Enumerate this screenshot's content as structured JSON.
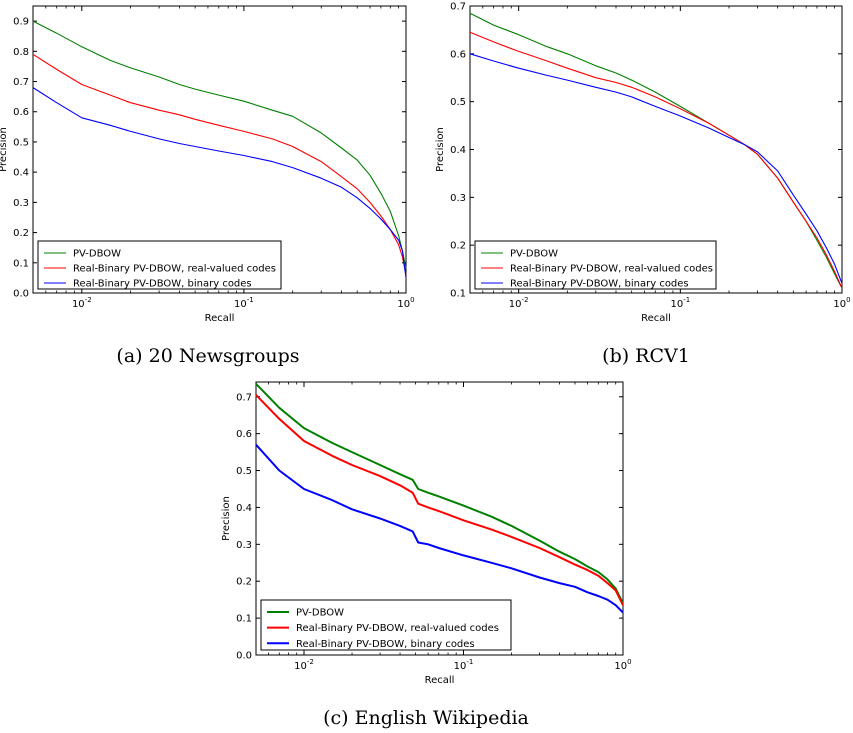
{
  "chart_data": [
    {
      "type": "line",
      "caption": "(a) 20 Newsgroups",
      "xlabel": "Recall",
      "ylabel": "Precision",
      "xscale": "log",
      "xlim": [
        0.005,
        1
      ],
      "ylim": [
        0,
        0.95
      ],
      "xticks": [
        {
          "v": 0.01,
          "b": "10",
          "e": "-2"
        },
        {
          "v": 0.1,
          "b": "10",
          "e": "-1"
        },
        {
          "v": 1,
          "b": "10",
          "e": "0"
        }
      ],
      "yticks": [
        "0.0",
        "0.1",
        "0.2",
        "0.3",
        "0.4",
        "0.5",
        "0.6",
        "0.7",
        "0.8",
        "0.9"
      ],
      "legend_position": "lower-left",
      "series": [
        {
          "name": "PV-DBOW",
          "color": "#008000",
          "x": [
            0.005,
            0.007,
            0.01,
            0.015,
            0.02,
            0.03,
            0.04,
            0.05,
            0.07,
            0.1,
            0.15,
            0.2,
            0.3,
            0.4,
            0.5,
            0.6,
            0.7,
            0.8,
            0.9,
            0.95,
            1.0
          ],
          "y": [
            0.9,
            0.86,
            0.815,
            0.77,
            0.745,
            0.715,
            0.69,
            0.675,
            0.655,
            0.635,
            0.605,
            0.585,
            0.53,
            0.48,
            0.44,
            0.39,
            0.33,
            0.27,
            0.19,
            0.14,
            0.08
          ]
        },
        {
          "name": "Real-Binary PV-DBOW, real-valued codes",
          "color": "#ff0000",
          "x": [
            0.005,
            0.007,
            0.01,
            0.015,
            0.02,
            0.03,
            0.04,
            0.05,
            0.07,
            0.1,
            0.15,
            0.2,
            0.3,
            0.4,
            0.5,
            0.6,
            0.7,
            0.8,
            0.9,
            0.95,
            1.0
          ],
          "y": [
            0.79,
            0.74,
            0.69,
            0.655,
            0.63,
            0.605,
            0.59,
            0.575,
            0.555,
            0.535,
            0.51,
            0.485,
            0.435,
            0.385,
            0.345,
            0.3,
            0.255,
            0.21,
            0.16,
            0.12,
            0.06
          ]
        },
        {
          "name": "Real-Binary PV-DBOW, binary codes",
          "color": "#0000ff",
          "x": [
            0.005,
            0.007,
            0.01,
            0.015,
            0.02,
            0.03,
            0.04,
            0.05,
            0.07,
            0.1,
            0.15,
            0.2,
            0.3,
            0.4,
            0.5,
            0.6,
            0.7,
            0.8,
            0.9,
            0.95,
            1.0
          ],
          "y": [
            0.68,
            0.63,
            0.58,
            0.555,
            0.535,
            0.51,
            0.495,
            0.485,
            0.47,
            0.455,
            0.435,
            0.415,
            0.38,
            0.35,
            0.315,
            0.28,
            0.245,
            0.21,
            0.175,
            0.14,
            0.05
          ]
        }
      ]
    },
    {
      "type": "line",
      "caption": "(b) RCV1",
      "xlabel": "Recall",
      "ylabel": "Precision",
      "xscale": "log",
      "xlim": [
        0.005,
        1
      ],
      "ylim": [
        0.1,
        0.7
      ],
      "xticks": [
        {
          "v": 0.01,
          "b": "10",
          "e": "-2"
        },
        {
          "v": 0.1,
          "b": "10",
          "e": "-1"
        },
        {
          "v": 1,
          "b": "10",
          "e": "0"
        }
      ],
      "yticks": [
        "0.1",
        "0.2",
        "0.3",
        "0.4",
        "0.5",
        "0.6",
        "0.7"
      ],
      "legend_position": "lower-left",
      "series": [
        {
          "name": "PV-DBOW",
          "color": "#008000",
          "x": [
            0.005,
            0.007,
            0.01,
            0.015,
            0.02,
            0.03,
            0.04,
            0.05,
            0.07,
            0.1,
            0.15,
            0.2,
            0.25,
            0.3,
            0.4,
            0.5,
            0.6,
            0.7,
            0.8,
            0.9,
            1.0
          ],
          "y": [
            0.685,
            0.66,
            0.64,
            0.615,
            0.6,
            0.575,
            0.56,
            0.545,
            0.52,
            0.49,
            0.455,
            0.43,
            0.41,
            0.39,
            0.34,
            0.29,
            0.25,
            0.21,
            0.175,
            0.14,
            0.11
          ]
        },
        {
          "name": "Real-Binary PV-DBOW, real-valued codes",
          "color": "#ff0000",
          "x": [
            0.005,
            0.007,
            0.01,
            0.015,
            0.02,
            0.03,
            0.04,
            0.05,
            0.07,
            0.1,
            0.15,
            0.2,
            0.25,
            0.3,
            0.4,
            0.5,
            0.6,
            0.7,
            0.8,
            0.9,
            1.0
          ],
          "y": [
            0.645,
            0.625,
            0.605,
            0.585,
            0.57,
            0.55,
            0.54,
            0.53,
            0.51,
            0.485,
            0.455,
            0.43,
            0.41,
            0.39,
            0.34,
            0.29,
            0.25,
            0.215,
            0.18,
            0.145,
            0.11
          ]
        },
        {
          "name": "Real-Binary PV-DBOW, binary codes",
          "color": "#0000ff",
          "x": [
            0.005,
            0.007,
            0.01,
            0.015,
            0.02,
            0.03,
            0.04,
            0.05,
            0.07,
            0.1,
            0.15,
            0.2,
            0.25,
            0.3,
            0.4,
            0.5,
            0.6,
            0.7,
            0.8,
            0.9,
            1.0
          ],
          "y": [
            0.6,
            0.585,
            0.57,
            0.555,
            0.545,
            0.53,
            0.52,
            0.51,
            0.49,
            0.47,
            0.445,
            0.425,
            0.41,
            0.395,
            0.355,
            0.305,
            0.265,
            0.23,
            0.195,
            0.16,
            0.12
          ]
        }
      ]
    },
    {
      "type": "line",
      "caption": "(c) English Wikipedia",
      "xlabel": "Recall",
      "ylabel": "Precision",
      "xscale": "log",
      "xlim": [
        0.005,
        1
      ],
      "ylim": [
        0,
        0.74
      ],
      "xticks": [
        {
          "v": 0.01,
          "b": "10",
          "e": "-2"
        },
        {
          "v": 0.1,
          "b": "10",
          "e": "-1"
        },
        {
          "v": 1,
          "b": "10",
          "e": "0"
        }
      ],
      "yticks": [
        "0.0",
        "0.1",
        "0.2",
        "0.3",
        "0.4",
        "0.5",
        "0.6",
        "0.7"
      ],
      "legend_position": "lower-left",
      "series": [
        {
          "name": "PV-DBOW",
          "color": "#008000",
          "x": [
            0.005,
            0.007,
            0.01,
            0.015,
            0.02,
            0.03,
            0.04,
            0.048,
            0.052,
            0.06,
            0.07,
            0.1,
            0.15,
            0.2,
            0.3,
            0.4,
            0.5,
            0.6,
            0.7,
            0.8,
            0.9,
            1.0
          ],
          "y": [
            0.735,
            0.67,
            0.615,
            0.575,
            0.55,
            0.515,
            0.49,
            0.475,
            0.45,
            0.44,
            0.43,
            0.405,
            0.375,
            0.35,
            0.31,
            0.28,
            0.26,
            0.24,
            0.225,
            0.205,
            0.18,
            0.14
          ]
        },
        {
          "name": "Real-Binary PV-DBOW, real-valued codes",
          "color": "#ff0000",
          "x": [
            0.005,
            0.007,
            0.01,
            0.015,
            0.02,
            0.03,
            0.04,
            0.048,
            0.052,
            0.06,
            0.07,
            0.1,
            0.15,
            0.2,
            0.3,
            0.4,
            0.5,
            0.6,
            0.7,
            0.8,
            0.9,
            1.0
          ],
          "y": [
            0.705,
            0.64,
            0.58,
            0.54,
            0.515,
            0.485,
            0.46,
            0.44,
            0.41,
            0.4,
            0.39,
            0.365,
            0.34,
            0.32,
            0.29,
            0.265,
            0.245,
            0.23,
            0.215,
            0.195,
            0.175,
            0.135
          ]
        },
        {
          "name": "Real-Binary PV-DBOW, binary codes",
          "color": "#0000ff",
          "x": [
            0.005,
            0.007,
            0.01,
            0.015,
            0.02,
            0.03,
            0.04,
            0.048,
            0.052,
            0.06,
            0.07,
            0.1,
            0.15,
            0.2,
            0.3,
            0.4,
            0.5,
            0.6,
            0.7,
            0.8,
            0.9,
            1.0
          ],
          "y": [
            0.57,
            0.5,
            0.45,
            0.42,
            0.395,
            0.37,
            0.35,
            0.335,
            0.305,
            0.3,
            0.29,
            0.27,
            0.25,
            0.235,
            0.21,
            0.195,
            0.185,
            0.17,
            0.16,
            0.15,
            0.135,
            0.115
          ]
        }
      ]
    }
  ]
}
